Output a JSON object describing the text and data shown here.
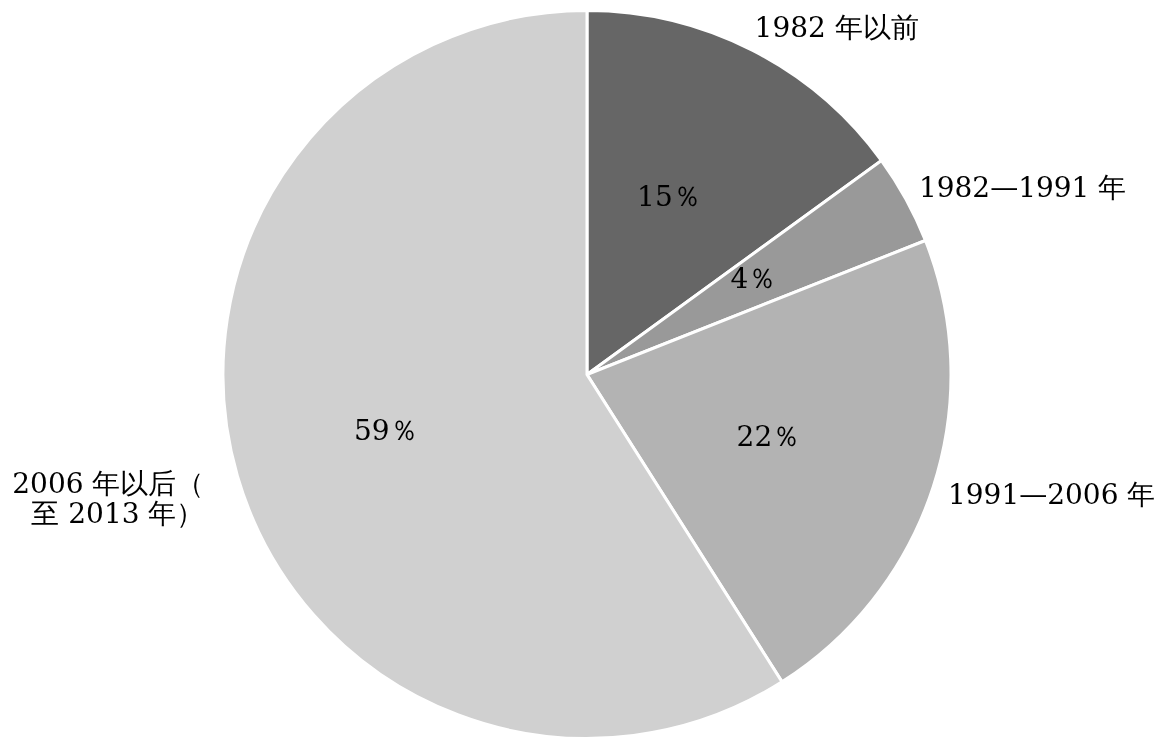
{
  "chart_data": {
    "type": "pie",
    "categories": [
      "1982 年以前",
      "1982—1991 年",
      "1991—2006 年",
      "2006 年以后（至 2013 年）"
    ],
    "values": [
      15,
      4,
      22,
      59
    ],
    "colors": [
      "#666666",
      "#999999",
      "#b3b3b3",
      "#d0d0d0"
    ],
    "value_labels": [
      "15％",
      "4％",
      "22％",
      "59％"
    ]
  }
}
